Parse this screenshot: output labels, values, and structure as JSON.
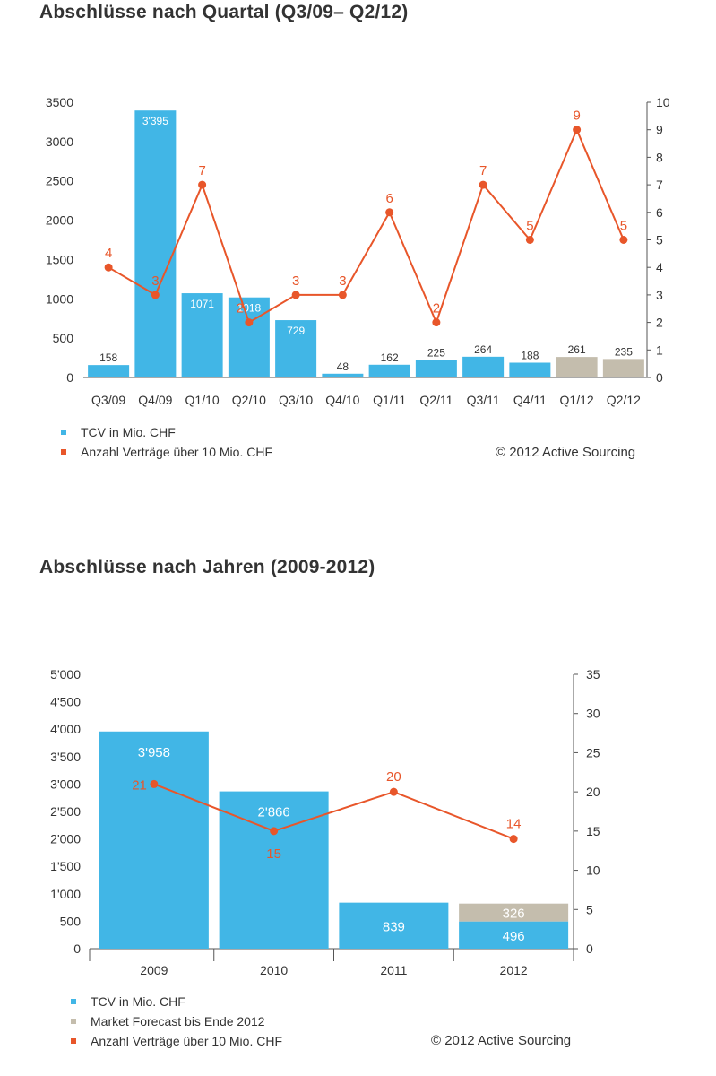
{
  "chart_data": [
    {
      "type": "bar",
      "title": "Abschlüsse nach Quartal (Q3/09– Q2/12)",
      "categories": [
        "Q3/09",
        "Q4/09",
        "Q1/10",
        "Q2/10",
        "Q3/10",
        "Q4/10",
        "Q1/11",
        "Q2/11",
        "Q3/11",
        "Q4/11",
        "Q1/12",
        "Q2/12"
      ],
      "series": [
        {
          "name": "TCV in Mio. CHF",
          "kind": "bar",
          "axis": "left",
          "values": [
            158,
            3395,
            1071,
            1018,
            729,
            48,
            162,
            225,
            264,
            188,
            261,
            235
          ],
          "labels": [
            "158",
            "3'395",
            "1071",
            "1018",
            "729",
            "48",
            "162",
            "225",
            "264",
            "188",
            "261",
            "235"
          ],
          "colors": [
            "#41b6e6",
            "#41b6e6",
            "#41b6e6",
            "#41b6e6",
            "#41b6e6",
            "#41b6e6",
            "#41b6e6",
            "#41b6e6",
            "#41b6e6",
            "#41b6e6",
            "#c4bdad",
            "#c4bdad"
          ]
        },
        {
          "name": "Anzahl Verträge über 10 Mio. CHF",
          "kind": "line",
          "axis": "right",
          "values": [
            4,
            3,
            7,
            2,
            3,
            3,
            6,
            2,
            7,
            5,
            9,
            5
          ],
          "labels": [
            "4",
            "3",
            "7",
            "2",
            "3",
            "3",
            "6",
            "2",
            "7",
            "5",
            "9",
            "5"
          ],
          "color": "#e8562a"
        }
      ],
      "y_left": {
        "min": 0,
        "max": 3500,
        "ticks": [
          "0",
          "500",
          "1000",
          "1500",
          "2000",
          "2500",
          "3000",
          "3500"
        ]
      },
      "y_right": {
        "min": 0,
        "max": 10,
        "ticks": [
          "0",
          "1",
          "2",
          "3",
          "4",
          "5",
          "6",
          "7",
          "8",
          "9",
          "10"
        ]
      },
      "legend": [
        {
          "label": "TCV in Mio. CHF",
          "color": "#41b6e6"
        },
        {
          "label": "Anzahl Verträge über 10 Mio. CHF",
          "color": "#e8562a"
        }
      ],
      "legend_position": "bottom-left",
      "grid": false,
      "copyright": "© 2012 Active Sourcing"
    },
    {
      "type": "bar",
      "title": "Abschlüsse nach Jahren (2009-2012)",
      "categories": [
        "2009",
        "2010",
        "2011",
        "2012"
      ],
      "series": [
        {
          "name": "TCV in Mio. CHF",
          "kind": "bar",
          "axis": "left",
          "stack": "a",
          "values": [
            3958,
            2866,
            839,
            496
          ],
          "labels": [
            "3'958",
            "2'866",
            "839",
            "496"
          ],
          "color": "#41b6e6"
        },
        {
          "name": "Market Forecast bis Ende 2012",
          "kind": "bar",
          "axis": "left",
          "stack": "a",
          "values": [
            0,
            0,
            0,
            326
          ],
          "labels": [
            "",
            "",
            "",
            "326"
          ],
          "color": "#c4bdad"
        },
        {
          "name": "Anzahl Verträge über 10 Mio. CHF",
          "kind": "line",
          "axis": "right",
          "values": [
            21,
            15,
            20,
            14
          ],
          "labels": [
            "21",
            "15",
            "20",
            "14"
          ],
          "color": "#e8562a"
        }
      ],
      "y_left": {
        "min": 0,
        "max": 5000,
        "ticks": [
          "0",
          "500",
          "1'000",
          "1'500",
          "2'000",
          "2'500",
          "3'000",
          "3'500",
          "4'000",
          "4'500",
          "5'000"
        ]
      },
      "y_right": {
        "min": 0,
        "max": 35,
        "ticks": [
          "0",
          "5",
          "10",
          "15",
          "20",
          "25",
          "30",
          "35"
        ]
      },
      "legend": [
        {
          "label": "TCV in Mio. CHF",
          "color": "#41b6e6"
        },
        {
          "label": "Market Forecast bis Ende 2012",
          "color": "#c4bdad"
        },
        {
          "label": "Anzahl Verträge über 10 Mio. CHF",
          "color": "#e8562a"
        }
      ],
      "legend_position": "bottom-left",
      "grid": false,
      "copyright": "© 2012 Active Sourcing"
    }
  ]
}
